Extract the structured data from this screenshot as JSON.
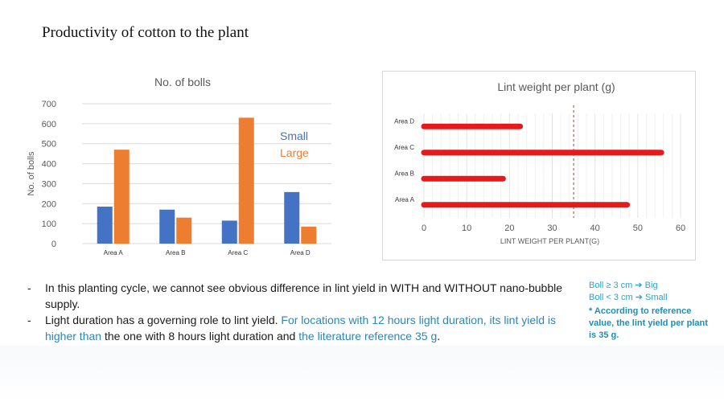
{
  "slide": {
    "title": "Productivity of cotton to the plant"
  },
  "chart_data": [
    {
      "type": "bar",
      "title": "No. of bolls",
      "xlabel": "",
      "ylabel": "No. of bolls",
      "categories": [
        "Area A",
        "Area B",
        "Area C",
        "Area D"
      ],
      "series": [
        {
          "name": "Small",
          "color": "#4472c4",
          "values": [
            185,
            170,
            115,
            258
          ]
        },
        {
          "name": "Large",
          "color": "#ed7d31",
          "values": [
            470,
            130,
            630,
            85
          ]
        }
      ],
      "ylim": [
        0,
        700
      ],
      "yticks": [
        "0",
        "100",
        "200",
        "300",
        "400",
        "500",
        "600",
        "700"
      ],
      "grid": true,
      "legend": "right"
    },
    {
      "type": "bar",
      "orientation": "horizontal",
      "title": "Lint weight per plant (g)",
      "xlabel": "LINT  WEIGHT PER PLANT(G)",
      "ylabel": "",
      "categories": [
        "Area A",
        "Area B",
        "Area C",
        "Area D"
      ],
      "values": [
        47.5,
        18.5,
        55.5,
        22.5
      ],
      "color": "#e41a1c",
      "xlim": [
        0,
        60
      ],
      "xticks": [
        "0",
        "10",
        "20",
        "30",
        "40",
        "50",
        "60"
      ],
      "reference_line": 35,
      "grid": true
    }
  ],
  "notes": {
    "bullet1": "In this planting cycle, we cannot see obvious difference in lint yield in WITH and WITHOUT nano-bubble supply.",
    "bullet2_a": "Light duration has a governing role to lint yield. ",
    "bullet2_b": "For locations with 12 hours light duration, its lint yield is higher than",
    "bullet2_c": " the one with 8 hours light duration and ",
    "bullet2_d": "the literature reference 35 g",
    "bullet2_e": "."
  },
  "side_notes": {
    "boll_big": "Boll ≥ 3 cm ➔ Big",
    "boll_small": "Boll < 3 cm ➔ Small",
    "reference": "* According to reference value, the lint yield per plant is 35 g."
  }
}
